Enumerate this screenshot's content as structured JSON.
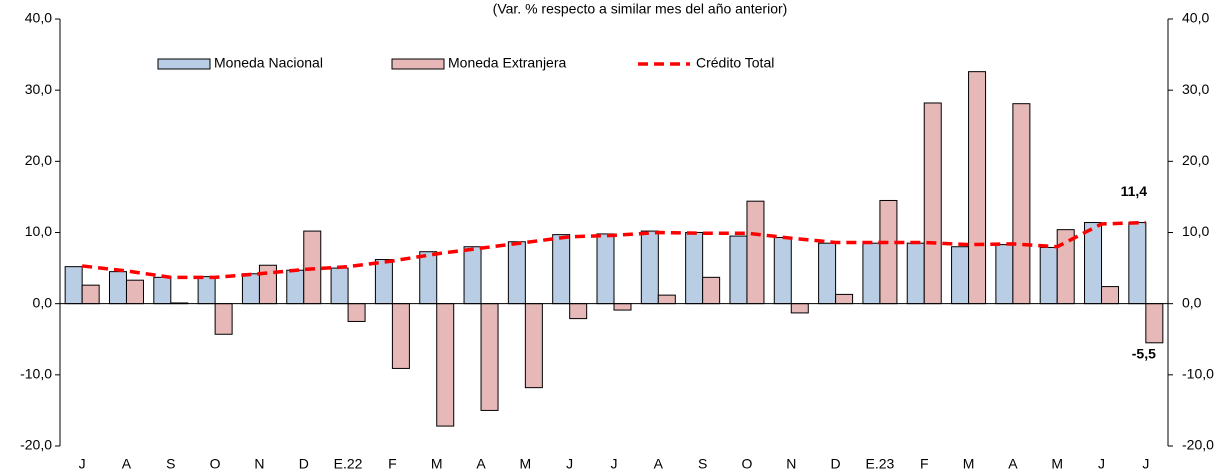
{
  "chart_data": {
    "type": "bar-line",
    "subtitle": "(Var. % respecto a similar mes del año anterior)",
    "categories": [
      "J",
      "A",
      "S",
      "O",
      "N",
      "D",
      "E.22",
      "F",
      "M",
      "A",
      "M",
      "J",
      "J",
      "A",
      "S",
      "O",
      "N",
      "D",
      "E.23",
      "F",
      "M",
      "A",
      "M",
      "J",
      "J"
    ],
    "series": [
      {
        "name": "Moneda Nacional",
        "type": "bar",
        "color": "#b9cde5",
        "values": [
          5.2,
          4.5,
          3.7,
          3.8,
          4.2,
          4.7,
          5.0,
          6.2,
          7.3,
          8.0,
          8.7,
          9.7,
          9.8,
          10.2,
          10.0,
          9.5,
          9.3,
          8.5,
          8.5,
          8.5,
          8.0,
          8.3,
          7.9,
          11.4,
          11.4
        ]
      },
      {
        "name": "Moneda Extranjera",
        "type": "bar",
        "color": "#e6b9b8",
        "values": [
          2.6,
          3.3,
          0.1,
          -4.3,
          5.4,
          10.2,
          -2.5,
          -9.1,
          -17.2,
          -15.0,
          -11.8,
          -2.1,
          -0.9,
          1.2,
          3.7,
          14.4,
          -1.3,
          1.3,
          14.5,
          28.2,
          32.6,
          28.1,
          10.4,
          2.4,
          -5.5
        ],
        "value_labels": [
          null,
          null,
          null,
          null,
          null,
          null,
          null,
          null,
          null,
          null,
          null,
          null,
          null,
          null,
          null,
          null,
          null,
          null,
          null,
          null,
          null,
          null,
          null,
          null,
          "-5,5"
        ]
      },
      {
        "name": "Crédito Total",
        "type": "line",
        "color": "#ff0000",
        "values": [
          5.3,
          4.6,
          3.7,
          3.7,
          4.2,
          4.8,
          5.2,
          6.0,
          7.0,
          7.8,
          8.6,
          9.4,
          9.6,
          10.0,
          9.9,
          9.9,
          9.2,
          8.6,
          8.6,
          8.6,
          8.3,
          8.4,
          8.0,
          11.2,
          11.4
        ],
        "value_labels": [
          null,
          null,
          null,
          null,
          null,
          null,
          null,
          null,
          null,
          null,
          null,
          null,
          null,
          null,
          null,
          null,
          null,
          null,
          null,
          null,
          null,
          null,
          null,
          null,
          "11,4"
        ]
      }
    ],
    "ylim": [
      -20,
      40
    ],
    "yticks": [
      {
        "value": -20,
        "label": "-20,0"
      },
      {
        "value": -10,
        "label": "-10,0"
      },
      {
        "value": 0,
        "label": "0,0"
      },
      {
        "value": 10,
        "label": "10,0"
      },
      {
        "value": 20,
        "label": "20,0"
      },
      {
        "value": 30,
        "label": "30,0"
      },
      {
        "value": 40,
        "label": "40,0"
      }
    ],
    "y2lim": [
      -20,
      40
    ],
    "y2ticks": [
      {
        "value": -20,
        "label": "-20,0"
      },
      {
        "value": -10,
        "label": "-10,0"
      },
      {
        "value": 0,
        "label": "0,0"
      },
      {
        "value": 10,
        "label": "10,0"
      },
      {
        "value": 20,
        "label": "20,0"
      },
      {
        "value": 30,
        "label": "30,0"
      },
      {
        "value": 40,
        "label": "40,0"
      }
    ],
    "grid": false,
    "legend": "top"
  }
}
